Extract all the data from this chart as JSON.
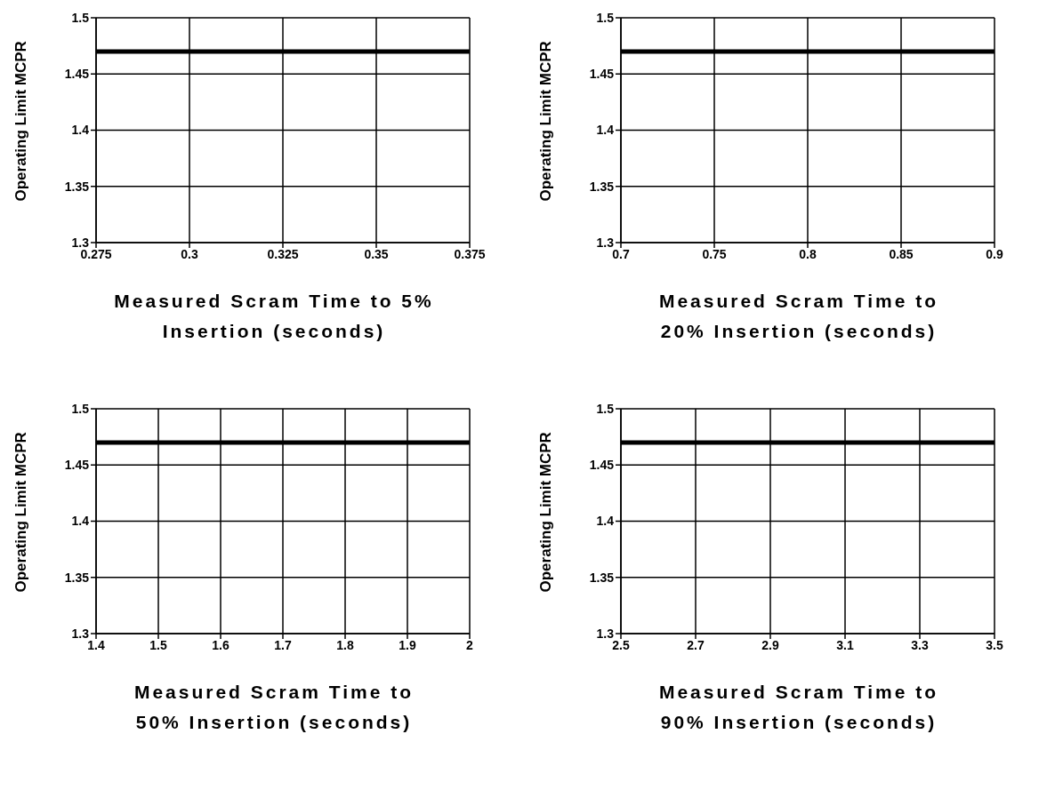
{
  "chart_data": [
    {
      "type": "line",
      "x": [
        0.275,
        0.375
      ],
      "values": [
        1.47,
        1.47
      ],
      "color": "#000000",
      "xlim": [
        0.275,
        0.375
      ],
      "xticks": [
        0.275,
        0.3,
        0.325,
        0.35,
        0.375
      ],
      "ylim": [
        1.3,
        1.5
      ],
      "yticks": [
        1.3,
        1.35,
        1.4,
        1.45,
        1.5
      ],
      "grid": true,
      "marker": "none",
      "line_style": "solid",
      "xlabel": "Measured Scram Time to 5% Insertion (seconds)",
      "ylabel": "Operating Limit MCPR"
    },
    {
      "type": "line",
      "x": [
        0.7,
        0.9
      ],
      "values": [
        1.47,
        1.47
      ],
      "color": "#000000",
      "xlim": [
        0.7,
        0.9
      ],
      "xticks": [
        0.7,
        0.75,
        0.8,
        0.85,
        0.9
      ],
      "ylim": [
        1.3,
        1.5
      ],
      "yticks": [
        1.3,
        1.35,
        1.4,
        1.45,
        1.5
      ],
      "grid": true,
      "marker": "none",
      "line_style": "solid",
      "xlabel": "Measured Scram Time to 20% Insertion (seconds)",
      "ylabel": "Operating Limit MCPR"
    },
    {
      "type": "line",
      "x": [
        1.4,
        2
      ],
      "values": [
        1.47,
        1.47
      ],
      "color": "#000000",
      "xlim": [
        1.4,
        2
      ],
      "xticks": [
        1.4,
        1.5,
        1.6,
        1.7,
        1.8,
        1.9,
        2
      ],
      "ylim": [
        1.3,
        1.5
      ],
      "yticks": [
        1.3,
        1.35,
        1.4,
        1.45,
        1.5
      ],
      "grid": true,
      "marker": "none",
      "line_style": "solid",
      "xlabel": "Measured Scram Time to 50% Insertion (seconds)",
      "ylabel": "Operating Limit MCPR"
    },
    {
      "type": "line",
      "x": [
        2.5,
        3.5
      ],
      "values": [
        1.47,
        1.47
      ],
      "color": "#000000",
      "xlim": [
        2.5,
        3.5
      ],
      "xticks": [
        2.5,
        2.7,
        2.9,
        3.1,
        3.3,
        3.5
      ],
      "ylim": [
        1.3,
        1.5
      ],
      "yticks": [
        1.3,
        1.35,
        1.4,
        1.45,
        1.5
      ],
      "grid": true,
      "marker": "none",
      "line_style": "solid",
      "xlabel": "Measured Scram Time to 90% Insertion (seconds)",
      "ylabel": "Operating Limit MCPR"
    }
  ]
}
